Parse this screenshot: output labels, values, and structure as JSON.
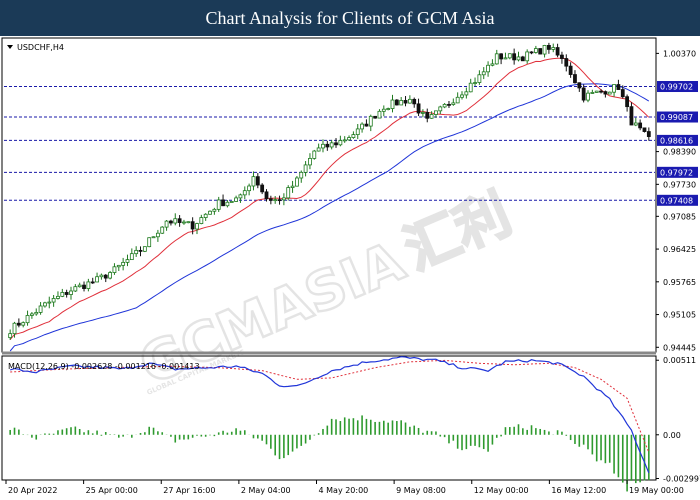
{
  "header": {
    "title": "Chart Analysis for Clients of GCM Asia"
  },
  "colors": {
    "header_bg": "#1b3a57",
    "bull": "#1e7a1e",
    "bear": "#111111",
    "ma_fast": "#e0303b",
    "ma_slow": "#2035d8",
    "level_line": "#1a1aa8",
    "level_box": "#1a1ab0",
    "macd_line": "#2035d8",
    "signal_line": "#e0303b",
    "histogram": "#2e9a2e"
  },
  "watermark": {
    "brand": "GCMASIA",
    "chinese": "汇利",
    "tagline": "GLOBAL CAPITAL MARKETS"
  },
  "chart_data": {
    "type": "candlestick",
    "symbol_label": "USDCHF,H4",
    "price_axis": {
      "range": [
        0.9435,
        1.0068
      ],
      "ticks": [
        "1.00370",
        "0.98390",
        "0.97730",
        "0.97085",
        "0.96425",
        "0.95765",
        "0.95105",
        "0.94445"
      ]
    },
    "levels": [
      0.99702,
      0.99087,
      0.98616,
      0.97972,
      0.97408
    ],
    "highlighted_levels": [
      "0.99702",
      "0.99087",
      "0.98616",
      "0.97972",
      "0.97408"
    ],
    "time_axis": [
      "20 Apr 2022",
      "25 Apr 00:00",
      "27 Apr 16:00",
      "2 May 04:00",
      "4 May 20:00",
      "9 May 08:00",
      "12 May 00:00",
      "16 May 12:00",
      "19 May 00:00"
    ],
    "anchors": [
      [
        0,
        0.948
      ],
      [
        8,
        0.953
      ],
      [
        14,
        0.956
      ],
      [
        20,
        0.958
      ],
      [
        24,
        0.96
      ],
      [
        30,
        0.964
      ],
      [
        36,
        0.97
      ],
      [
        42,
        0.969
      ],
      [
        48,
        0.9735
      ],
      [
        53,
        0.9745
      ],
      [
        56,
        0.979
      ],
      [
        59,
        0.9745
      ],
      [
        62,
        0.974
      ],
      [
        66,
        0.978
      ],
      [
        70,
        0.984
      ],
      [
        76,
        0.986
      ],
      [
        80,
        0.988
      ],
      [
        86,
        0.993
      ],
      [
        92,
        0.9945
      ],
      [
        96,
        0.99
      ],
      [
        100,
        0.993
      ],
      [
        104,
        0.996
      ],
      [
        108,
        0.999
      ],
      [
        112,
        1.003
      ],
      [
        118,
        1.003
      ],
      [
        124,
        1.005
      ],
      [
        128,
        1.0015
      ],
      [
        132,
        0.995
      ],
      [
        136,
        0.996
      ],
      [
        140,
        0.997
      ],
      [
        143,
        0.99
      ],
      [
        147,
        0.9862
      ]
    ],
    "ma_fast_name": "",
    "ma_slow_name": "",
    "macd": {
      "label": "MACD(12,26,9) -0.002628 -0.001216 -0.001413",
      "range": [
        -0.0031,
        0.0054
      ],
      "ticks": [
        "0.00511",
        "0.00",
        "-0.002997"
      ],
      "macd_anchors": [
        [
          0,
          0.0045
        ],
        [
          6,
          0.0043
        ],
        [
          14,
          0.0047
        ],
        [
          22,
          0.0046
        ],
        [
          26,
          0.0045
        ],
        [
          32,
          0.0049
        ],
        [
          38,
          0.0045
        ],
        [
          46,
          0.0046
        ],
        [
          52,
          0.0047
        ],
        [
          58,
          0.0042
        ],
        [
          62,
          0.0034
        ],
        [
          66,
          0.0033
        ],
        [
          74,
          0.0044
        ],
        [
          82,
          0.005
        ],
        [
          90,
          0.0053
        ],
        [
          98,
          0.0051
        ],
        [
          104,
          0.0046
        ],
        [
          110,
          0.0044
        ],
        [
          114,
          0.005
        ],
        [
          120,
          0.0051
        ],
        [
          126,
          0.0049
        ],
        [
          132,
          0.004
        ],
        [
          138,
          0.0024
        ],
        [
          143,
          0.0003
        ],
        [
          147,
          -0.0026
        ]
      ],
      "signal_anchors": [
        [
          0,
          0.0043
        ],
        [
          12,
          0.0045
        ],
        [
          24,
          0.0046
        ],
        [
          36,
          0.0047
        ],
        [
          48,
          0.0046
        ],
        [
          58,
          0.0044
        ],
        [
          66,
          0.0038
        ],
        [
          74,
          0.0039
        ],
        [
          84,
          0.0046
        ],
        [
          92,
          0.005
        ],
        [
          100,
          0.0051
        ],
        [
          108,
          0.0049
        ],
        [
          116,
          0.0048
        ],
        [
          124,
          0.0049
        ],
        [
          130,
          0.0046
        ],
        [
          136,
          0.0038
        ],
        [
          142,
          0.0025
        ],
        [
          147,
          -0.0012
        ]
      ]
    }
  }
}
